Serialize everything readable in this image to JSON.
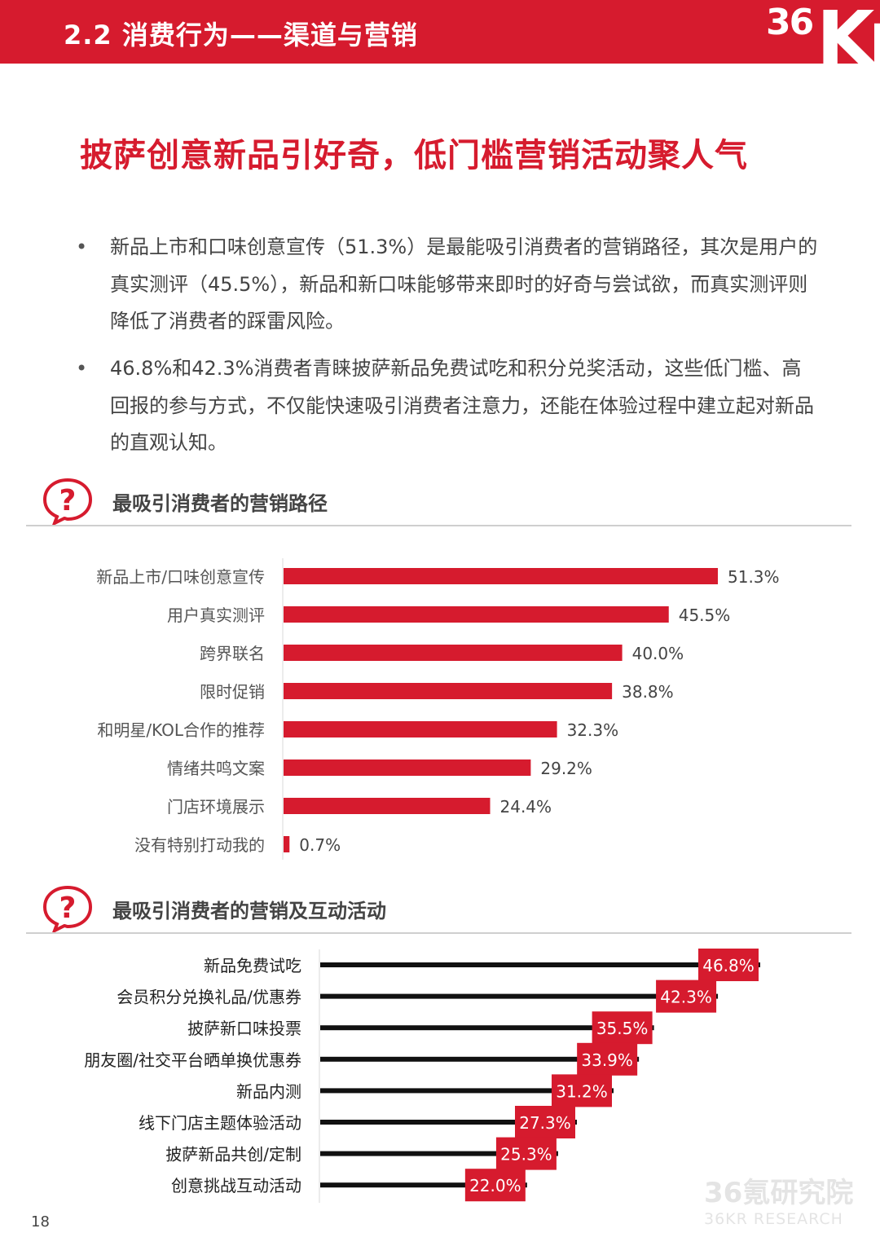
{
  "header": {
    "section_title": "2.2 消费行为——渠道与营销",
    "logo_text_num": "36",
    "logo_text_kr": "Kr"
  },
  "headline": "披萨创意新品引好奇，低门槛营销活动聚人气",
  "bullets": [
    "新品上市和口味创意宣传（51.3%）是最能吸引消费者的营销路径，其次是用户的真实测评（45.5%），新品和新口味能够带来即时的好奇与尝试欲，而真实测评则降低了消费者的踩雷风险。",
    "46.8%和42.3%消费者青睐披萨新品免费试吃和积分兑奖活动，这些低门槛、高回报的参与方式，不仅能快速吸引消费者注意力，还能在体验过程中建立起对新品的直观认知。"
  ],
  "bullet_symbol": "•",
  "question_icon_glyph": "?",
  "section1": {
    "label": "最吸引消费者的营销路径"
  },
  "section2": {
    "label": "最吸引消费者的营销及互动活动"
  },
  "chart_data": [
    {
      "type": "bar",
      "orientation": "horizontal",
      "categories": [
        "新品上市/口味创意宣传",
        "用户真实测评",
        "跨界联名",
        "限时促销",
        "和明星/KOL合作的推荐",
        "情绪共鸣文案",
        "门店环境展示",
        "没有特别打动我的"
      ],
      "values": [
        51.3,
        45.5,
        40.0,
        38.8,
        32.3,
        29.2,
        24.4,
        0.7
      ],
      "value_labels": [
        "51.3%",
        "45.5%",
        "40.0%",
        "38.8%",
        "32.3%",
        "29.2%",
        "24.4%",
        "0.7%"
      ],
      "xlim": [
        0,
        60
      ],
      "bar_color": "#d61b2e",
      "grid": false
    },
    {
      "type": "bar",
      "orientation": "horizontal",
      "style": "lollipop",
      "categories": [
        "新品免费试吃",
        "会员积分兑换礼品/优惠券",
        "披萨新口味投票",
        "朋友圈/社交平台晒单换优惠券",
        "新品内测",
        "线下门店主题体验活动",
        "披萨新品共创/定制",
        "创意挑战互动活动"
      ],
      "values": [
        46.8,
        42.3,
        35.5,
        33.9,
        31.2,
        27.3,
        25.3,
        22.0
      ],
      "value_labels": [
        "46.8%",
        "42.3%",
        "35.5%",
        "33.9%",
        "31.2%",
        "27.3%",
        "25.3%",
        "22.0%"
      ],
      "xlim": [
        0,
        50
      ],
      "bar_color": "#111111",
      "label_box_color": "#d61b2e",
      "grid": false
    }
  ],
  "page_number": "18",
  "watermark": {
    "line1": "36氪研究院",
    "line2": "36KR RESEARCH"
  },
  "colors": {
    "accent": "#d61b2e",
    "text": "#444444"
  }
}
